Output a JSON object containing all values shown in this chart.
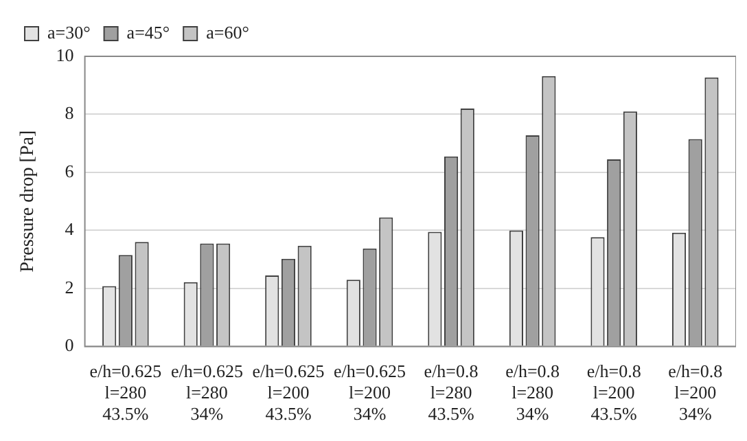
{
  "chart_data": {
    "type": "bar",
    "ylabel": "Pressure drop [Pa]",
    "categories": [
      "e/h=0.625\nl=280\n43.5%",
      "e/h=0.625\nl=280\n34%",
      "e/h=0.625\nl=200\n43.5%",
      "e/h=0.625\nl=200\n34%",
      "e/h=0.8\nl=280\n43.5%",
      "e/h=0.8\nl=280\n34%",
      "e/h=0.8\nl=200\n43.5%",
      "e/h=0.8\nl=200\n34%"
    ],
    "series": [
      {
        "name": "a=30°",
        "color": "#e2e2e2",
        "values": [
          2.08,
          2.22,
          2.45,
          2.3,
          3.95,
          4.0,
          3.77,
          3.92
        ]
      },
      {
        "name": "a=45°",
        "color": "#a0a0a0",
        "values": [
          3.15,
          3.55,
          3.02,
          3.38,
          6.55,
          7.28,
          6.45,
          7.15
        ]
      },
      {
        "name": "a=60°",
        "color": "#c4c4c4",
        "values": [
          3.6,
          3.55,
          3.47,
          4.45,
          8.2,
          9.32,
          8.1,
          9.27
        ]
      }
    ],
    "ylim": [
      0,
      10
    ],
    "yticks": [
      0,
      2,
      4,
      6,
      8,
      10
    ],
    "grid": "y",
    "legend": "top left"
  }
}
